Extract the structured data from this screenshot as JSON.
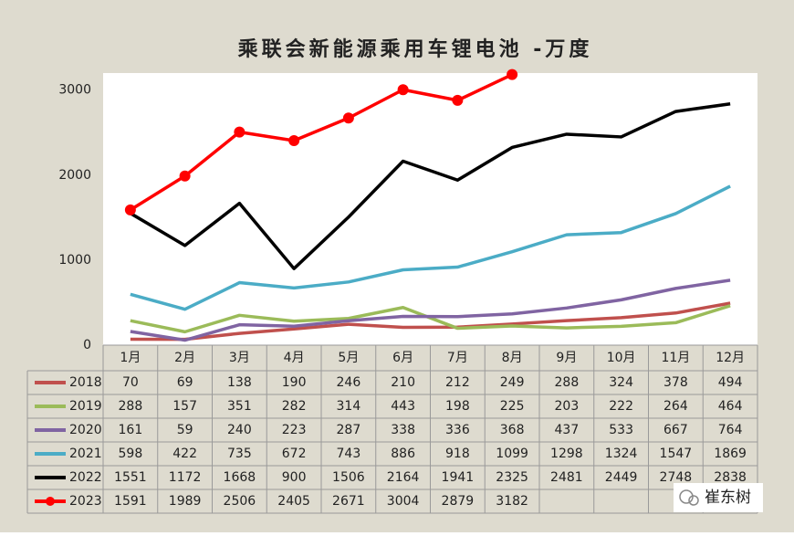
{
  "chart_data": {
    "type": "line",
    "title": "乘联会新能源乘用车锂电池 -万度",
    "categories": [
      "1月",
      "2月",
      "3月",
      "4月",
      "5月",
      "6月",
      "7月",
      "8月",
      "9月",
      "10月",
      "11月",
      "12月"
    ],
    "series": [
      {
        "name": "2018",
        "color": "#c0504d",
        "values": [
          70,
          69,
          138,
          190,
          246,
          210,
          212,
          249,
          288,
          324,
          378,
          494
        ]
      },
      {
        "name": "2019",
        "color": "#9bbb59",
        "values": [
          288,
          157,
          351,
          282,
          314,
          443,
          198,
          225,
          203,
          222,
          264,
          464
        ]
      },
      {
        "name": "2020",
        "color": "#8064a2",
        "values": [
          161,
          59,
          240,
          223,
          287,
          338,
          336,
          368,
          437,
          533,
          667,
          764
        ]
      },
      {
        "name": "2021",
        "color": "#4bacc6",
        "values": [
          598,
          422,
          735,
          672,
          743,
          886,
          918,
          1099,
          1298,
          1324,
          1547,
          1869
        ]
      },
      {
        "name": "2022",
        "color": "#000000",
        "values": [
          1551,
          1172,
          1668,
          900,
          1506,
          2164,
          1941,
          2325,
          2481,
          2449,
          2748,
          2838
        ]
      },
      {
        "name": "2023",
        "color": "#ff0000",
        "markers": true,
        "values": [
          1591,
          1989,
          2506,
          2405,
          2671,
          3004,
          2879,
          3182,
          null,
          null,
          null,
          null
        ]
      }
    ],
    "ylim": [
      0,
      3200
    ],
    "yticks": [
      0,
      1000,
      2000,
      3000
    ],
    "grid": false,
    "watermark": "崔东树"
  }
}
